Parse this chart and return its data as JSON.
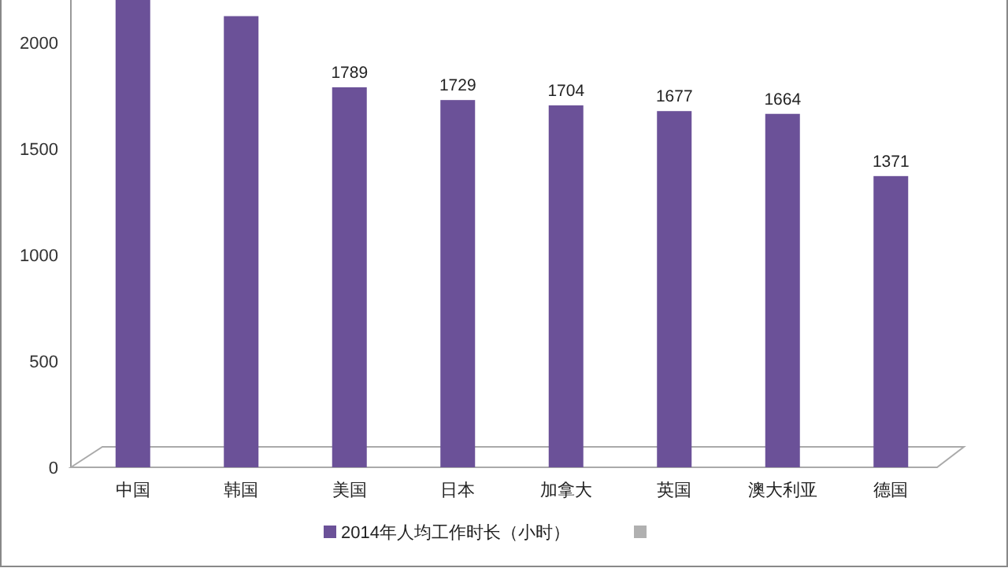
{
  "chart_data": {
    "type": "bar",
    "categories": [
      "中国",
      "韩国",
      "美国",
      "日本",
      "加拿大",
      "英国",
      "澳大利亚",
      "德国"
    ],
    "series": [
      {
        "name": "2014年人均工作时长（小时）",
        "color": "#6b5198",
        "values": [
          2200,
          2124,
          1789,
          1729,
          1704,
          1677,
          1664,
          1371
        ],
        "value_labels": [
          null,
          null,
          "1789",
          "1729",
          "1704",
          "1677",
          "1664",
          "1371"
        ]
      },
      {
        "color": "#b0b0b0",
        "values": [
          null,
          null,
          null,
          null,
          null,
          null,
          null,
          null
        ]
      }
    ],
    "ylim": [
      0,
      2200
    ],
    "yticks": [
      0,
      500,
      1000,
      1500,
      2000
    ],
    "grid": false,
    "legend": "bottom"
  }
}
